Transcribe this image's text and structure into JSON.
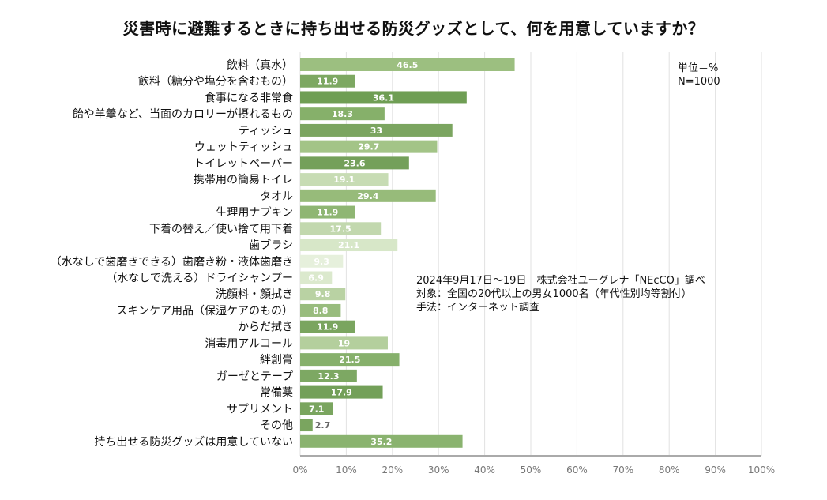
{
  "chart_data": {
    "type": "bar",
    "orientation": "horizontal",
    "title": "災害時に避難するときに持ち出せる防災グッズとして、何を用意していますか？",
    "categories": [
      "飲料（真水）",
      "飲料（糖分や塩分を含むもの）",
      "食事になる非常食",
      "飴や羊羹など、当面のカロリーが摂れるもの",
      "ティッシュ",
      "ウェットティッシュ",
      "トイレットペーパー",
      "携帯用の簡易トイレ",
      "タオル",
      "生理用ナプキン",
      "下着の替え／使い捨て用下着",
      "歯ブラシ",
      "（水なしで歯磨きできる）歯磨き粉・液体歯磨き",
      "（水なしで洗える）ドライシャンプー",
      "洗顔料・顔拭き",
      "スキンケア用品（保湿ケアのもの）",
      "からだ拭き",
      "消毒用アルコール",
      "絆創膏",
      "ガーゼとテープ",
      "常備薬",
      "サプリメント",
      "その他",
      "持ち出せる防災グッズは用意していない"
    ],
    "values": [
      46.5,
      11.9,
      36.1,
      18.3,
      33,
      29.7,
      23.6,
      19.1,
      29.4,
      11.9,
      17.5,
      21.1,
      9.3,
      6.9,
      9.8,
      8.8,
      11.9,
      19,
      21.5,
      12.3,
      17.9,
      7.1,
      2.7,
      35.2
    ],
    "value_labels": [
      "46.5",
      "11.9",
      "36.1",
      "18.3",
      "33",
      "29.7",
      "23.6",
      "19.1",
      "29.4",
      "11.9",
      "17.5",
      "21.1",
      "9.3",
      "6.9",
      "9.8",
      "8.8",
      "11.9",
      "19",
      "21.5",
      "12.3",
      "17.9",
      "7.1",
      "2.7",
      "35.2"
    ],
    "bar_colors": [
      "#9cbf80",
      "#7da862",
      "#6f9e54",
      "#86b06a",
      "#7ba560",
      "#a3c487",
      "#74a05a",
      "#c7dcb4",
      "#97bb7a",
      "#8fb673",
      "#c2d8ae",
      "#d7e7c8",
      "#e6f0dc",
      "#dbe9cd",
      "#b9d2a3",
      "#98bc7d",
      "#7aa55f",
      "#b4cf9d",
      "#86b06b",
      "#7da863",
      "#73a059",
      "#7aa55f",
      "#7aa55f",
      "#8ab36f"
    ],
    "xlim": [
      0,
      100
    ],
    "x_ticks": [
      "0%",
      "10%",
      "20%",
      "30%",
      "40%",
      "50%",
      "60%",
      "70%",
      "80%",
      "90%",
      "100%"
    ],
    "grid": true,
    "unit_note": "単位＝%",
    "n_note": "N=1000",
    "source_notes": [
      "2024年9月17日～19日　株式会社ユーグレナ「NEcCO」調べ",
      "対象：全国の20代以上の男女1000名（年代性別均等割付）",
      "手法：インターネット調査"
    ],
    "colors": {
      "grid": "#e2e2e2",
      "axis": "#aaaaaa",
      "dark_label": "#666666"
    }
  }
}
